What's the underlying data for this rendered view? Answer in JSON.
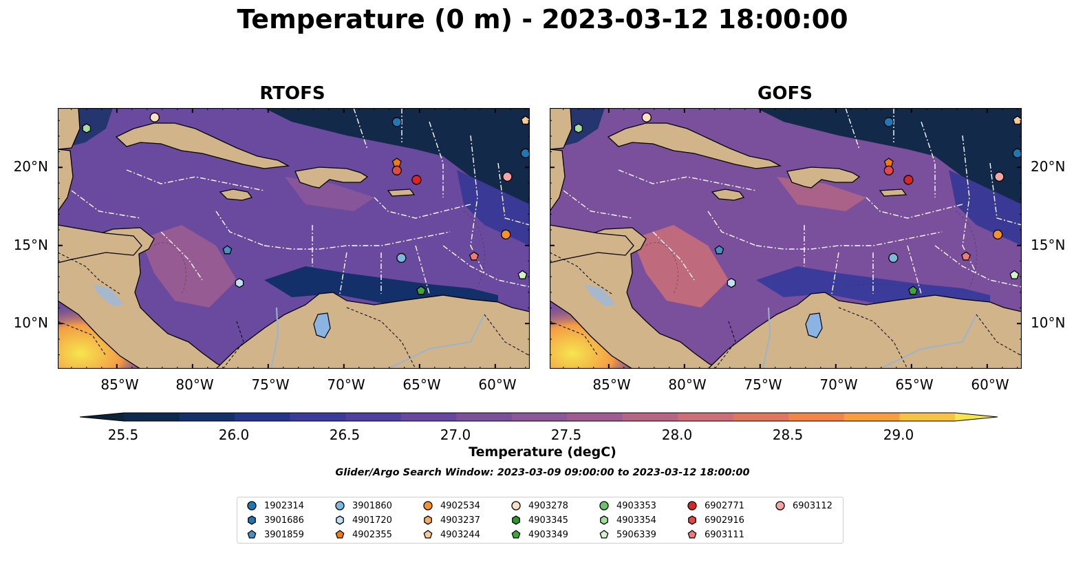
{
  "title": "Temperature (0 m) - 2023-03-12 18:00:00",
  "panels": [
    {
      "title": "RTOFS"
    },
    {
      "title": "GOFS"
    }
  ],
  "lat_labels": [
    "20°N",
    "15°N",
    "10°N"
  ],
  "lon_labels": [
    "85°W",
    "80°W",
    "75°W",
    "70°W",
    "65°W",
    "60°W"
  ],
  "colorbar": {
    "label": "Temperature (degC)",
    "ticks": [
      "25.5",
      "26.0",
      "26.5",
      "27.0",
      "27.5",
      "28.0",
      "28.5",
      "29.0"
    ],
    "colors": [
      "#0b2438",
      "#0d2a4d",
      "#14306b",
      "#26358c",
      "#3b3b9b",
      "#4f409f",
      "#66489f",
      "#7a4f9c",
      "#8d5898",
      "#9f5e91",
      "#b66684",
      "#cd6e78",
      "#e0785f",
      "#ef864a",
      "#f99d43",
      "#f7c247",
      "#f6e54f"
    ]
  },
  "search_window": "Glider/Argo Search Window: 2023-03-09 09:00:00 to 2023-03-12 18:00:00",
  "land_color": "#d1b48a",
  "legend": [
    {
      "id": "1902314",
      "shape": "circle",
      "color": "#1f77b4"
    },
    {
      "id": "3901686",
      "shape": "hexagon",
      "color": "#1f77b4"
    },
    {
      "id": "3901859",
      "shape": "pentagon",
      "color": "#4a90c8"
    },
    {
      "id": "3901860",
      "shape": "circle",
      "color": "#7fb8df"
    },
    {
      "id": "4901720",
      "shape": "hexagon",
      "color": "#bfe0f5"
    },
    {
      "id": "4902355",
      "shape": "pentagon",
      "color": "#f07b12"
    },
    {
      "id": "4902534",
      "shape": "circle",
      "color": "#f5922e"
    },
    {
      "id": "4903237",
      "shape": "hexagon",
      "color": "#f8ad63"
    },
    {
      "id": "4903244",
      "shape": "pentagon",
      "color": "#fbcb95"
    },
    {
      "id": "4903278",
      "shape": "circle",
      "color": "#fbe0c6"
    },
    {
      "id": "4903345",
      "shape": "hexagon",
      "color": "#2a9a2a"
    },
    {
      "id": "4903349",
      "shape": "pentagon",
      "color": "#3ca83c"
    },
    {
      "id": "4903353",
      "shape": "circle",
      "color": "#6cc36c"
    },
    {
      "id": "4903354",
      "shape": "hexagon",
      "color": "#a6dea0"
    },
    {
      "id": "5906339",
      "shape": "pentagon",
      "color": "#d3f1cb"
    },
    {
      "id": "6902771",
      "shape": "circle",
      "color": "#d62728"
    },
    {
      "id": "6902916",
      "shape": "hexagon",
      "color": "#e34848"
    },
    {
      "id": "6903111",
      "shape": "pentagon",
      "color": "#ef7a7a"
    },
    {
      "id": "6903112",
      "shape": "circle",
      "color": "#f7a4a4"
    }
  ],
  "map_markers": [
    {
      "lon": -82.5,
      "lat": 23.2,
      "shape": "circle",
      "color": "#fbe0c6"
    },
    {
      "lon": -87.0,
      "lat": 22.5,
      "shape": "hexagon",
      "color": "#a6dea0"
    },
    {
      "lon": -66.5,
      "lat": 22.9,
      "shape": "circle",
      "color": "#1f77b4"
    },
    {
      "lon": -66.5,
      "lat": 20.3,
      "shape": "pentagon",
      "color": "#f07b12"
    },
    {
      "lon": -66.5,
      "lat": 19.8,
      "shape": "circle",
      "color": "#e34848"
    },
    {
      "lon": -65.2,
      "lat": 19.2,
      "shape": "circle",
      "color": "#d62728"
    },
    {
      "lon": -59.2,
      "lat": 19.4,
      "shape": "circle",
      "color": "#f7a4a4"
    },
    {
      "lon": -59.3,
      "lat": 15.7,
      "shape": "circle",
      "color": "#f5922e"
    },
    {
      "lon": -61.4,
      "lat": 14.3,
      "shape": "pentagon",
      "color": "#ef7a7a"
    },
    {
      "lon": -77.7,
      "lat": 14.7,
      "shape": "pentagon",
      "color": "#4a90c8"
    },
    {
      "lon": -66.2,
      "lat": 14.2,
      "shape": "circle",
      "color": "#7fb8df"
    },
    {
      "lon": -76.9,
      "lat": 12.6,
      "shape": "hexagon",
      "color": "#bfe0f5"
    },
    {
      "lon": -64.9,
      "lat": 12.1,
      "shape": "pentagon",
      "color": "#3ca83c"
    },
    {
      "lon": -58.2,
      "lat": 13.1,
      "shape": "pentagon",
      "color": "#d3f1cb"
    },
    {
      "lon": -58.0,
      "lat": 23.0,
      "shape": "pentagon",
      "color": "#fbcb95"
    },
    {
      "lon": -58.0,
      "lat": 20.9,
      "shape": "circle",
      "color": "#1f77b4"
    }
  ]
}
